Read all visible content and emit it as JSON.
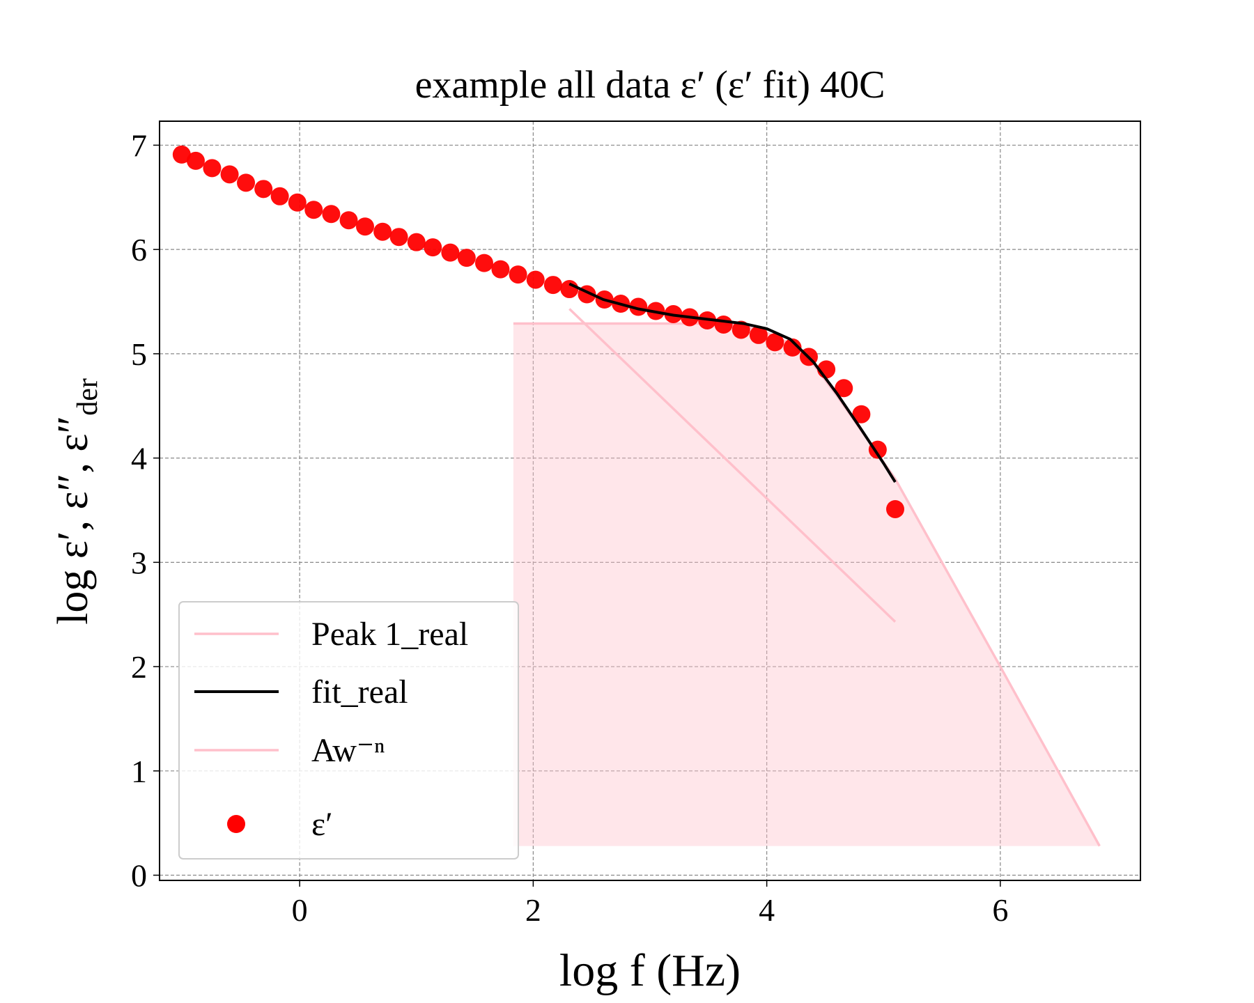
{
  "chart_data": {
    "type": "line",
    "title": "example all data ε′ (ε′ fit) 40C",
    "x_label": "log f (Hz)",
    "y_label": "log ε′, ε″, ε″",
    "y_label_subscript": "der",
    "xlim": [
      -1.2,
      7.2
    ],
    "ylim": [
      -0.05,
      7.23
    ],
    "xticks": [
      0,
      2,
      4,
      6
    ],
    "yticks": [
      0,
      1,
      2,
      3,
      4,
      5,
      6,
      7
    ],
    "grid": true,
    "legend": "lower left",
    "series": [
      {
        "name": "Peak 1_real",
        "color": "#ffc0cb",
        "style": "area",
        "x": [
          1.83,
          2.5,
          3.0,
          3.5,
          3.8,
          4.0,
          4.2,
          4.4,
          4.6,
          5.1,
          6.0,
          6.85
        ],
        "values": [
          5.29,
          5.29,
          5.29,
          5.29,
          5.27,
          5.2,
          5.1,
          4.9,
          4.6,
          3.8,
          2.0,
          0.28
        ]
      },
      {
        "name": "fit_real",
        "color": "#000000",
        "style": "line",
        "x": [
          2.31,
          2.6,
          2.9,
          3.2,
          3.5,
          3.8,
          4.0,
          4.2,
          4.4,
          4.6,
          4.8,
          5.0,
          5.1
        ],
        "values": [
          5.67,
          5.52,
          5.43,
          5.37,
          5.33,
          5.29,
          5.24,
          5.14,
          4.92,
          4.62,
          4.29,
          3.95,
          3.77
        ]
      },
      {
        "name": "Aw⁻ⁿ",
        "color": "#ffc0cb",
        "style": "line",
        "x": [
          2.31,
          5.1
        ],
        "values": [
          5.43,
          2.43
        ]
      },
      {
        "name": "ε′",
        "color": "#ff0000",
        "style": "scatter",
        "x": [
          -1.01,
          -0.89,
          -0.75,
          -0.6,
          -0.46,
          -0.31,
          -0.17,
          -0.02,
          0.12,
          0.27,
          0.42,
          0.56,
          0.71,
          0.85,
          1.0,
          1.14,
          1.29,
          1.43,
          1.58,
          1.72,
          1.87,
          2.02,
          2.17,
          2.31,
          2.46,
          2.61,
          2.75,
          2.9,
          3.05,
          3.2,
          3.34,
          3.49,
          3.63,
          3.78,
          3.93,
          4.07,
          4.22,
          4.36,
          4.51,
          4.66,
          4.81,
          4.95,
          5.1
        ],
        "values": [
          6.91,
          6.85,
          6.78,
          6.72,
          6.64,
          6.58,
          6.51,
          6.45,
          6.38,
          6.34,
          6.28,
          6.22,
          6.17,
          6.12,
          6.07,
          6.02,
          5.97,
          5.92,
          5.87,
          5.81,
          5.76,
          5.71,
          5.66,
          5.62,
          5.57,
          5.52,
          5.48,
          5.45,
          5.41,
          5.38,
          5.35,
          5.32,
          5.28,
          5.23,
          5.18,
          5.11,
          5.06,
          4.97,
          4.85,
          4.67,
          4.42,
          4.08,
          3.51
        ]
      }
    ]
  }
}
